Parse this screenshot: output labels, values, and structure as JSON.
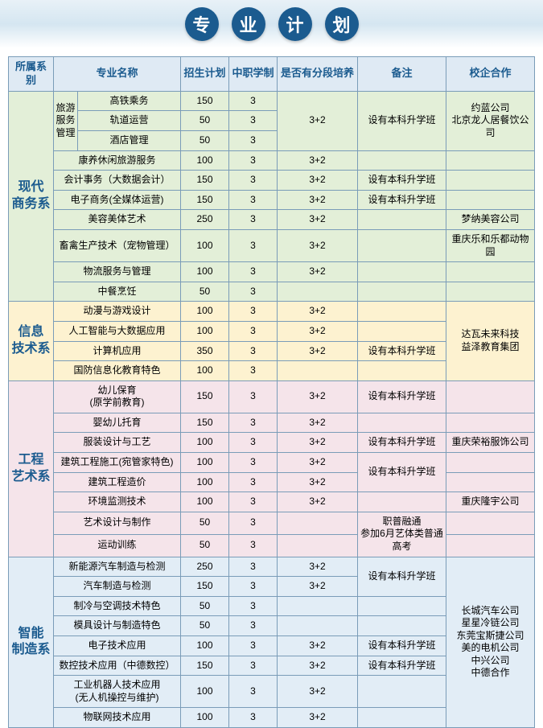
{
  "title_chars": [
    "专",
    "业",
    "计",
    "划"
  ],
  "headers": [
    "所属系别",
    "专业名称",
    "招生计划",
    "中职学制",
    "是否有分段培养",
    "备注",
    "校企合作"
  ],
  "colors": {
    "dept_green": "#e3efd8",
    "dept_yellow": "#fdf2d0",
    "dept_pink": "#f5e4ea",
    "dept_blue": "#e2edf6",
    "header_bg": "#dfeaf4",
    "border": "#7a9cb8",
    "text_blue": "#1b5b8f",
    "circle_bg": "#1b5b8f"
  },
  "departments": [
    {
      "name": "现代\n商务系",
      "color": "#e3efd8",
      "rows": [
        {
          "sub": "旅游\n服务\n管理",
          "sub_span": 3,
          "major": "高铁乘务",
          "plan": "150",
          "years": "3",
          "seg": "3+2",
          "seg_span": 3,
          "note": "设有本科升学班",
          "note_span": 3,
          "coop": "约蓝公司\n北京龙人居餐饮公司",
          "coop_span": 3
        },
        {
          "major": "轨道运营",
          "plan": "50",
          "years": "3"
        },
        {
          "major": "酒店管理",
          "plan": "50",
          "years": "3"
        },
        {
          "major": "康养休闲旅游服务",
          "major_span": 2,
          "plan": "100",
          "years": "3",
          "seg": "3+2",
          "note": "",
          "coop": ""
        },
        {
          "major": "会计事务（大数据会计）",
          "major_span": 2,
          "plan": "150",
          "years": "3",
          "seg": "3+2",
          "note": "设有本科升学班",
          "coop": ""
        },
        {
          "major": "电子商务(全媒体运营)",
          "major_span": 2,
          "plan": "150",
          "years": "3",
          "seg": "3+2",
          "note": "设有本科升学班",
          "coop": ""
        },
        {
          "major": "美容美体艺术",
          "major_span": 2,
          "plan": "250",
          "years": "3",
          "seg": "3+2",
          "note": "",
          "coop": "梦纳美容公司"
        },
        {
          "major": "畜禽生产技术（宠物管理）",
          "major_span": 2,
          "plan": "100",
          "years": "3",
          "seg": "3+2",
          "note": "",
          "coop": "重庆乐和乐都动物园"
        },
        {
          "major": "物流服务与管理",
          "major_span": 2,
          "plan": "100",
          "years": "3",
          "seg": "3+2",
          "note": "",
          "coop": ""
        },
        {
          "major": "中餐烹饪",
          "major_span": 2,
          "plan": "50",
          "years": "3",
          "seg": "",
          "note": "",
          "coop": ""
        }
      ]
    },
    {
      "name": "信息\n技术系",
      "color": "#fdf2d0",
      "rows": [
        {
          "major": "动漫与游戏设计",
          "major_span": 2,
          "plan": "100",
          "years": "3",
          "seg": "3+2",
          "note": "",
          "coop": "达瓦未来科技\n益泽教育集团",
          "coop_span": 4
        },
        {
          "major": "人工智能与大数据应用",
          "major_span": 2,
          "plan": "100",
          "years": "3",
          "seg": "3+2",
          "note": ""
        },
        {
          "major": "计算机应用",
          "major_span": 2,
          "plan": "350",
          "years": "3",
          "seg": "3+2",
          "note": "设有本科升学班"
        },
        {
          "major": "国防信息化教育特色",
          "major_span": 2,
          "plan": "100",
          "years": "3",
          "seg": "",
          "note": ""
        }
      ]
    },
    {
      "name": "工程\n艺术系",
      "color": "#f5e4ea",
      "rows": [
        {
          "major": "幼儿保育\n(原学前教育)",
          "major_span": 2,
          "plan": "150",
          "years": "3",
          "seg": "3+2",
          "note": "设有本科升学班",
          "coop": ""
        },
        {
          "major": "婴幼儿托育",
          "major_span": 2,
          "plan": "150",
          "years": "3",
          "seg": "3+2",
          "note": "",
          "coop": ""
        },
        {
          "major": "服装设计与工艺",
          "major_span": 2,
          "plan": "100",
          "years": "3",
          "seg": "3+2",
          "note": "设有本科升学班",
          "coop": "重庆荣裕服饰公司"
        },
        {
          "major": "建筑工程施工(宛管家特色)",
          "major_span": 2,
          "plan": "100",
          "years": "3",
          "seg": "3+2",
          "note": "设有本科升学班",
          "note_span": 2,
          "coop": ""
        },
        {
          "major": "建筑工程造价",
          "major_span": 2,
          "plan": "100",
          "years": "3",
          "seg": "3+2",
          "coop": ""
        },
        {
          "major": "环境监测技术",
          "major_span": 2,
          "plan": "100",
          "years": "3",
          "seg": "3+2",
          "note": "",
          "coop": "重庆隆宇公司"
        },
        {
          "major": "艺术设计与制作",
          "major_span": 2,
          "plan": "50",
          "years": "3",
          "seg": "",
          "note": "职普融通\n参加6月艺体类普通高考",
          "note_span": 2,
          "coop": ""
        },
        {
          "major": "运动训练",
          "major_span": 2,
          "plan": "50",
          "years": "3",
          "seg": "",
          "coop": ""
        }
      ]
    },
    {
      "name": "智能\n制造系",
      "color": "#e2edf6",
      "rows": [
        {
          "major": "新能源汽车制造与检测",
          "major_span": 2,
          "plan": "250",
          "years": "3",
          "seg": "3+2",
          "note": "设有本科升学班",
          "note_span": 2,
          "coop": "长城汽车公司\n星星冷链公司\n东莞宝斯捷公司\n美的电机公司\n中兴公司\n中德合作",
          "coop_span": 8
        },
        {
          "major": "汽车制造与检测",
          "major_span": 2,
          "plan": "150",
          "years": "3",
          "seg": "3+2"
        },
        {
          "major": "制冷与空调技术特色",
          "major_span": 2,
          "plan": "50",
          "years": "3",
          "seg": "",
          "note": ""
        },
        {
          "major": "模具设计与制造特色",
          "major_span": 2,
          "plan": "50",
          "years": "3",
          "seg": "",
          "note": ""
        },
        {
          "major": "电子技术应用",
          "major_span": 2,
          "plan": "100",
          "years": "3",
          "seg": "3+2",
          "note": "设有本科升学班"
        },
        {
          "major": "数控技术应用（中德数控）",
          "major_span": 2,
          "plan": "150",
          "years": "3",
          "seg": "3+2",
          "note": "设有本科升学班"
        },
        {
          "major": "工业机器人技术应用\n(无人机操控与维护)",
          "major_span": 2,
          "plan": "100",
          "years": "3",
          "seg": "3+2",
          "note": ""
        },
        {
          "major": "物联网技术应用",
          "major_span": 2,
          "plan": "100",
          "years": "3",
          "seg": "3+2",
          "note": ""
        }
      ]
    }
  ]
}
